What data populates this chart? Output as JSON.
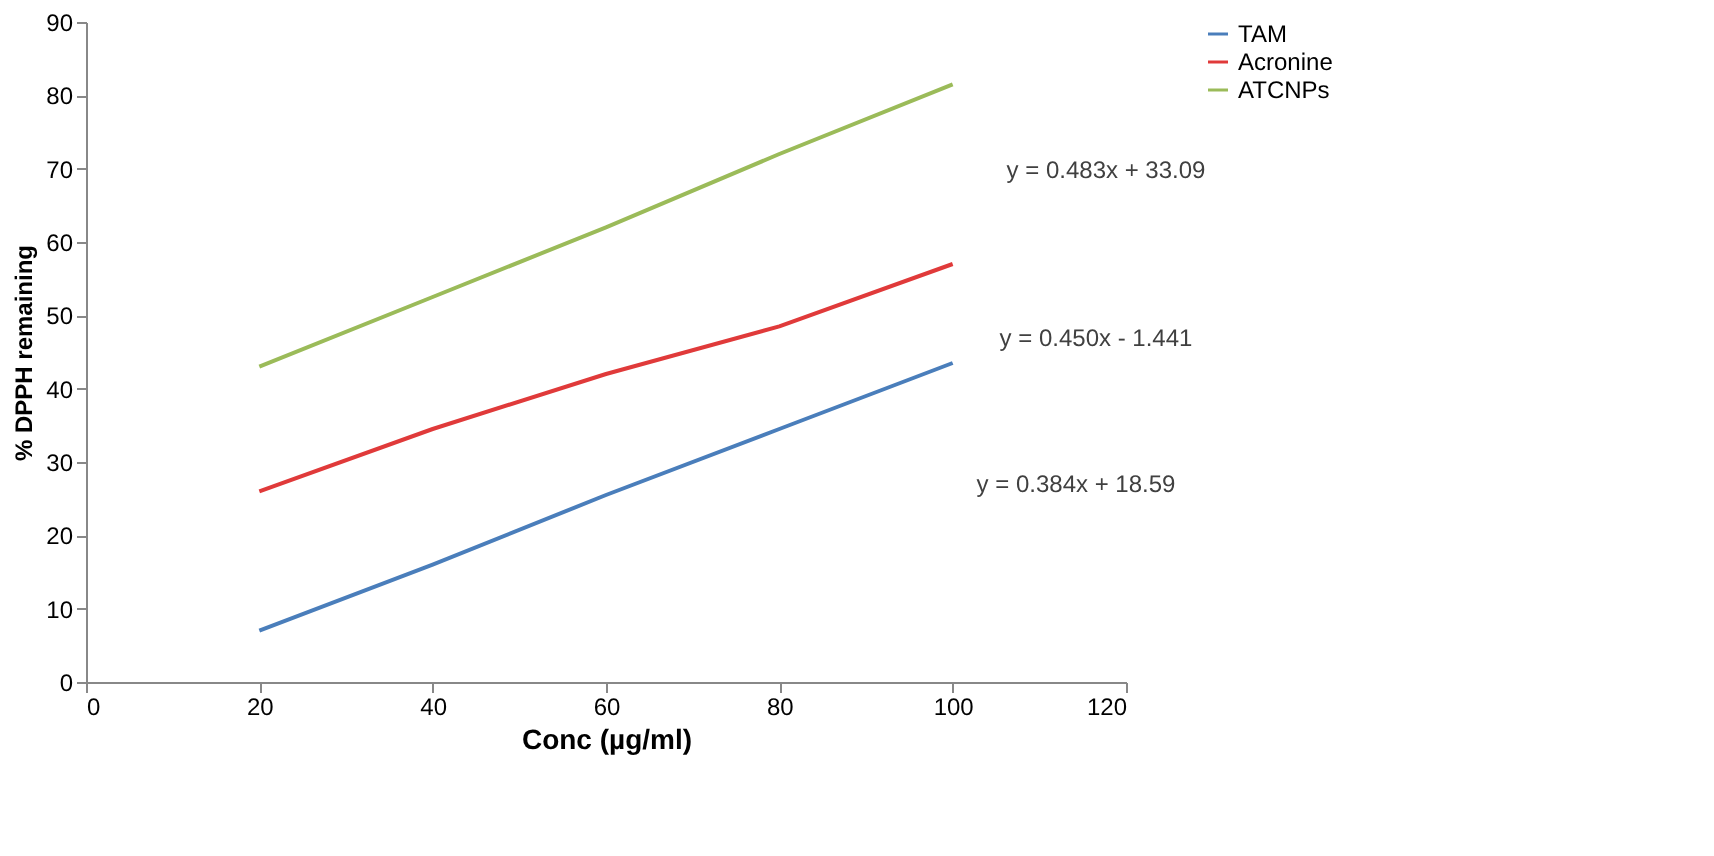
{
  "chart_data": {
    "type": "line",
    "xlabel": "Conc (µg/ml)",
    "ylabel": "% DPPH remaining",
    "x": [
      20,
      40,
      60,
      80,
      100
    ],
    "series": [
      {
        "name": "TAM",
        "color": "#4a7ebb",
        "values": [
          7,
          16,
          25.5,
          34.5,
          43.5
        ]
      },
      {
        "name": "Acronine",
        "color": "#e03a3a",
        "values": [
          26,
          34.5,
          42,
          48.5,
          57
        ]
      },
      {
        "name": "ATCNPs",
        "color": "#9bbb59",
        "values": [
          43,
          52.5,
          62,
          72,
          81.5
        ]
      }
    ],
    "xlim": [
      0,
      120
    ],
    "xticks": [
      0,
      20,
      40,
      60,
      80,
      100,
      120
    ],
    "ylim": [
      0,
      90
    ],
    "yticks": [
      0,
      10,
      20,
      30,
      40,
      50,
      60,
      70,
      80,
      90
    ],
    "annotations": [
      "y = 0.483x + 33.09",
      "y = 0.450x - 1.441",
      "y = 0.384x + 18.59"
    ],
    "grid": false,
    "legend": "right",
    "marker": "none",
    "line_style": "solid"
  }
}
